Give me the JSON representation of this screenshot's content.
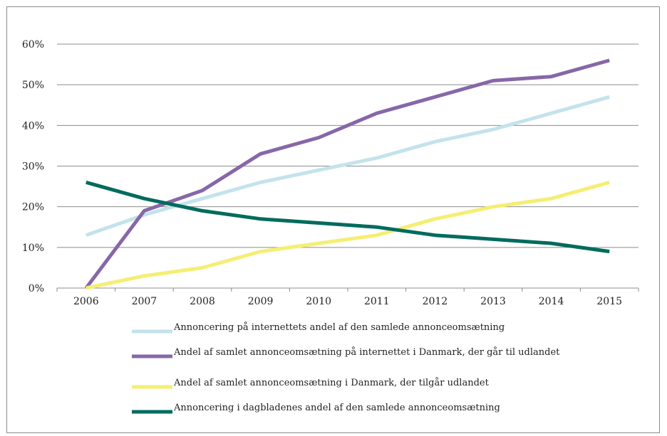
{
  "chart_data": {
    "type": "line",
    "x": [
      "2006",
      "2007",
      "2008",
      "2009",
      "2010",
      "2011",
      "2012",
      "2013",
      "2014",
      "2015"
    ],
    "ylim": [
      0,
      60
    ],
    "yticks": [
      0,
      10,
      20,
      30,
      40,
      50,
      60
    ],
    "ytick_labels": [
      "0%",
      "10%",
      "20%",
      "30%",
      "40%",
      "50%",
      "60%"
    ],
    "grid": "horizontal",
    "legend_position": "bottom",
    "series": [
      {
        "name": "Annoncering på internettets andel af den samlede annonceomsætning",
        "color": "#c3e3ec",
        "values": [
          13,
          18,
          22,
          26,
          29,
          32,
          36,
          39,
          43,
          47
        ]
      },
      {
        "name": "Andel af samlet annonceomsætning på internettet i Danmark, der går til udlandet",
        "color": "#8767a8",
        "values": [
          0,
          19,
          24,
          33,
          37,
          43,
          47,
          51,
          52,
          56
        ]
      },
      {
        "name": "Andel af samlet annonceomsætning i Danmark, der tilgår udlandet",
        "color": "#f5ee72",
        "values": [
          0,
          3,
          5,
          9,
          11,
          13,
          17,
          20,
          22,
          26
        ]
      },
      {
        "name": "Annoncering i dagbladenes andel af den samlede annonceomsætning",
        "color": "#006b5e",
        "values": [
          26,
          22,
          19,
          17,
          16,
          15,
          13,
          12,
          11,
          9
        ]
      }
    ]
  }
}
